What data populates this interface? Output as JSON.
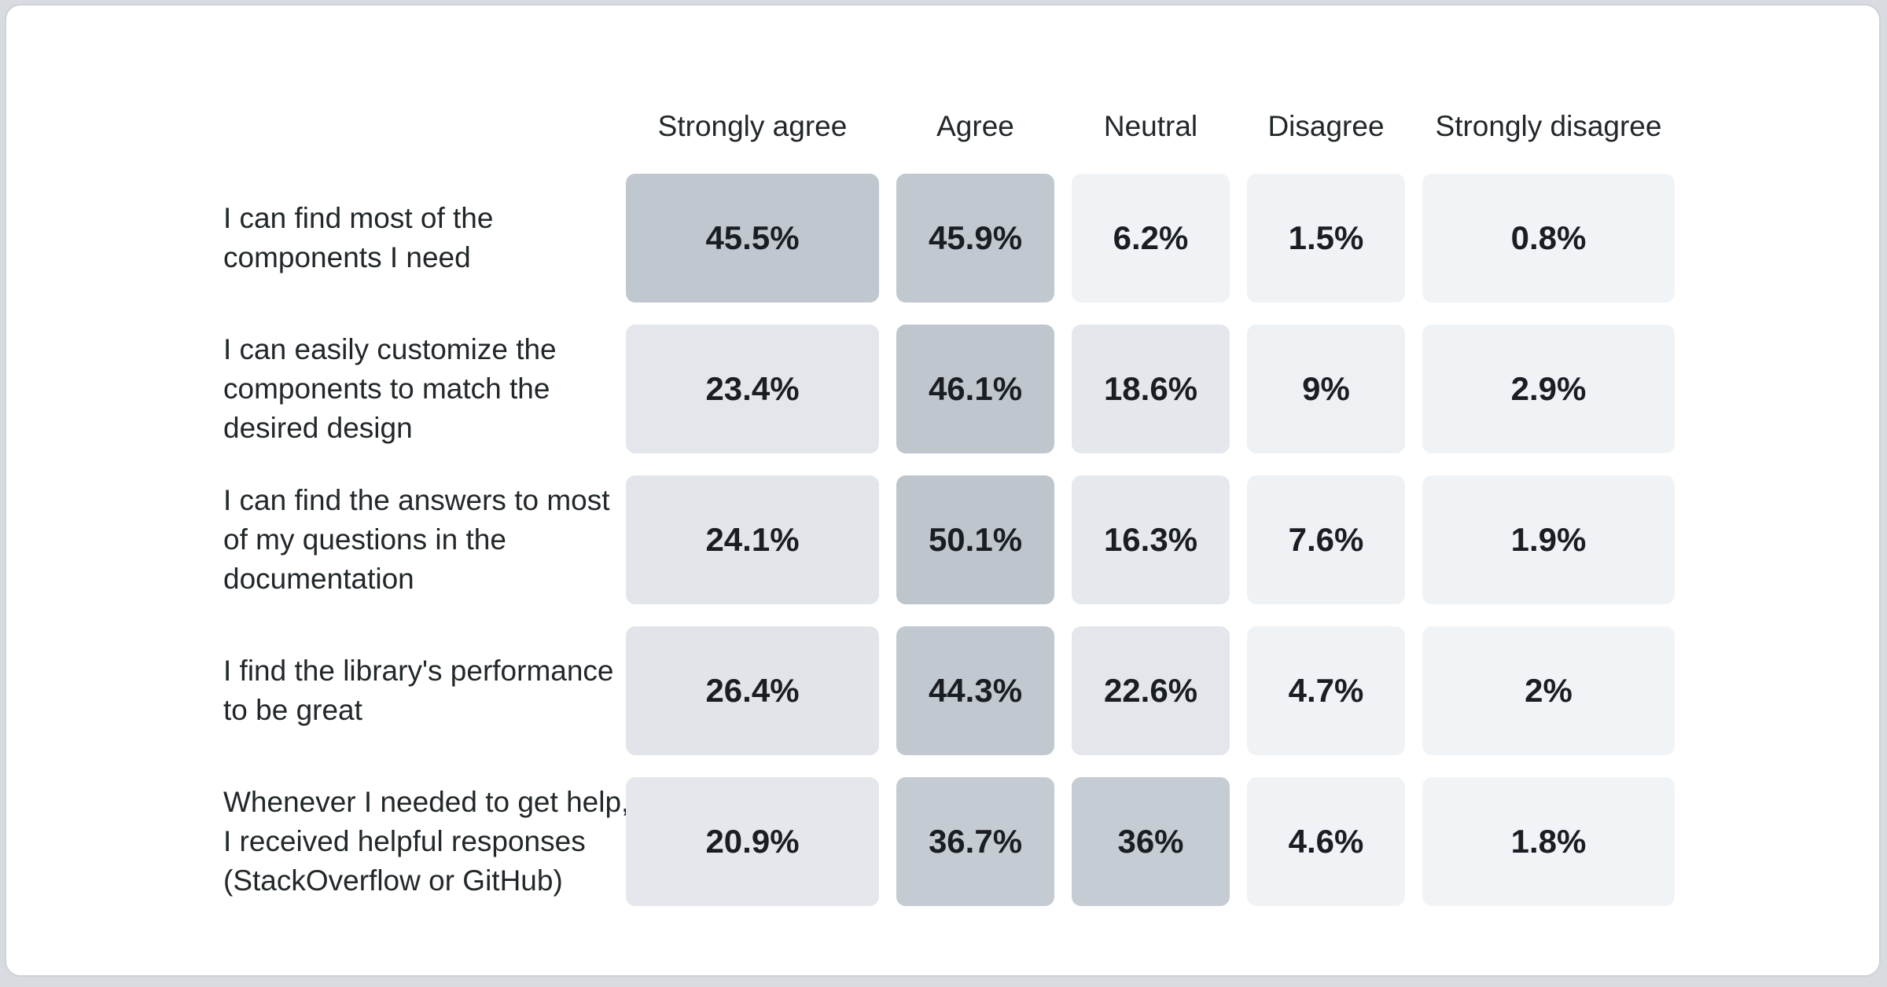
{
  "page": {
    "background": "#d8dce0",
    "card": {
      "background": "#ffffff",
      "border_color": "#cdd2d7"
    }
  },
  "heatmap": {
    "column_headers": [
      "Strongly agree",
      "Agree",
      "Neutral",
      "Disagree",
      "Strongly disagree"
    ],
    "rows": [
      {
        "lines": [
          "I can find most of the",
          "components I need"
        ],
        "cells": [
          {
            "value": "45.5%",
            "color": "#c1c7cf"
          },
          {
            "value": "45.9%",
            "color": "#c1c8d0"
          },
          {
            "value": "6.2%",
            "color": "#eff3f6"
          },
          {
            "value": "1.5%",
            "color": "#f0f3f6"
          },
          {
            "value": "0.8%",
            "color": "#f1f4f7"
          }
        ]
      },
      {
        "lines": [
          "I can easily customize the",
          "components to match the",
          "desired design"
        ],
        "cells": [
          {
            "value": "23.4%",
            "color": "#e3e7eb"
          },
          {
            "value": "46.1%",
            "color": "#c0c6ce"
          },
          {
            "value": "18.6%",
            "color": "#e4e8ec"
          },
          {
            "value": "9%",
            "color": "#edf1f4"
          },
          {
            "value": "2.9%",
            "color": "#f0f3f6"
          }
        ]
      },
      {
        "lines": [
          "I can find the answers to most",
          "of my questions in the",
          "documentation"
        ],
        "cells": [
          {
            "value": "24.1%",
            "color": "#e2e6ea"
          },
          {
            "value": "50.1%",
            "color": "#bfc5cd"
          },
          {
            "value": "16.3%",
            "color": "#e5e9ed"
          },
          {
            "value": "7.6%",
            "color": "#eef2f5"
          },
          {
            "value": "1.9%",
            "color": "#f0f3f6"
          }
        ]
      },
      {
        "lines": [
          "I find the library's performance",
          "to be great"
        ],
        "cells": [
          {
            "value": "26.4%",
            "color": "#e1e5e9"
          },
          {
            "value": "44.3%",
            "color": "#c2c8d0"
          },
          {
            "value": "22.6%",
            "color": "#e3e7eb"
          },
          {
            "value": "4.7%",
            "color": "#f0f3f6"
          },
          {
            "value": "2%",
            "color": "#f1f4f7"
          }
        ]
      },
      {
        "lines": [
          "Whenever I needed to get help,",
          "I received helpful responses",
          "(StackOverflow or GitHub)"
        ],
        "cells": [
          {
            "value": "20.9%",
            "color": "#e4e8ec"
          },
          {
            "value": "36.7%",
            "color": "#c5cbd2"
          },
          {
            "value": "36%",
            "color": "#c6ccd3"
          },
          {
            "value": "4.6%",
            "color": "#f0f3f6"
          },
          {
            "value": "1.8%",
            "color": "#f1f4f7"
          }
        ]
      }
    ]
  },
  "chart_data": {
    "type": "heatmap",
    "columns": [
      "Strongly agree",
      "Agree",
      "Neutral",
      "Disagree",
      "Strongly disagree"
    ],
    "rows": [
      "I can find most of the components I need",
      "I can easily customize the components to match the desired design",
      "I can find the answers to most of my questions in the documentation",
      "I find the library's performance to be great",
      "Whenever I needed to get help, I received helpful responses (StackOverflow or GitHub)"
    ],
    "values": [
      [
        45.5,
        45.9,
        6.2,
        1.5,
        0.8
      ],
      [
        23.4,
        46.1,
        18.6,
        9,
        2.9
      ],
      [
        24.1,
        50.1,
        16.3,
        7.6,
        1.9
      ],
      [
        26.4,
        44.3,
        22.6,
        4.7,
        2
      ],
      [
        20.9,
        36.7,
        36,
        4.6,
        1.8
      ]
    ],
    "unit": "%",
    "color_scale": {
      "low_value_color": "#f1f4f7",
      "high_value_color": "#bfc5cd"
    },
    "grid": false,
    "legend_position": "none"
  }
}
